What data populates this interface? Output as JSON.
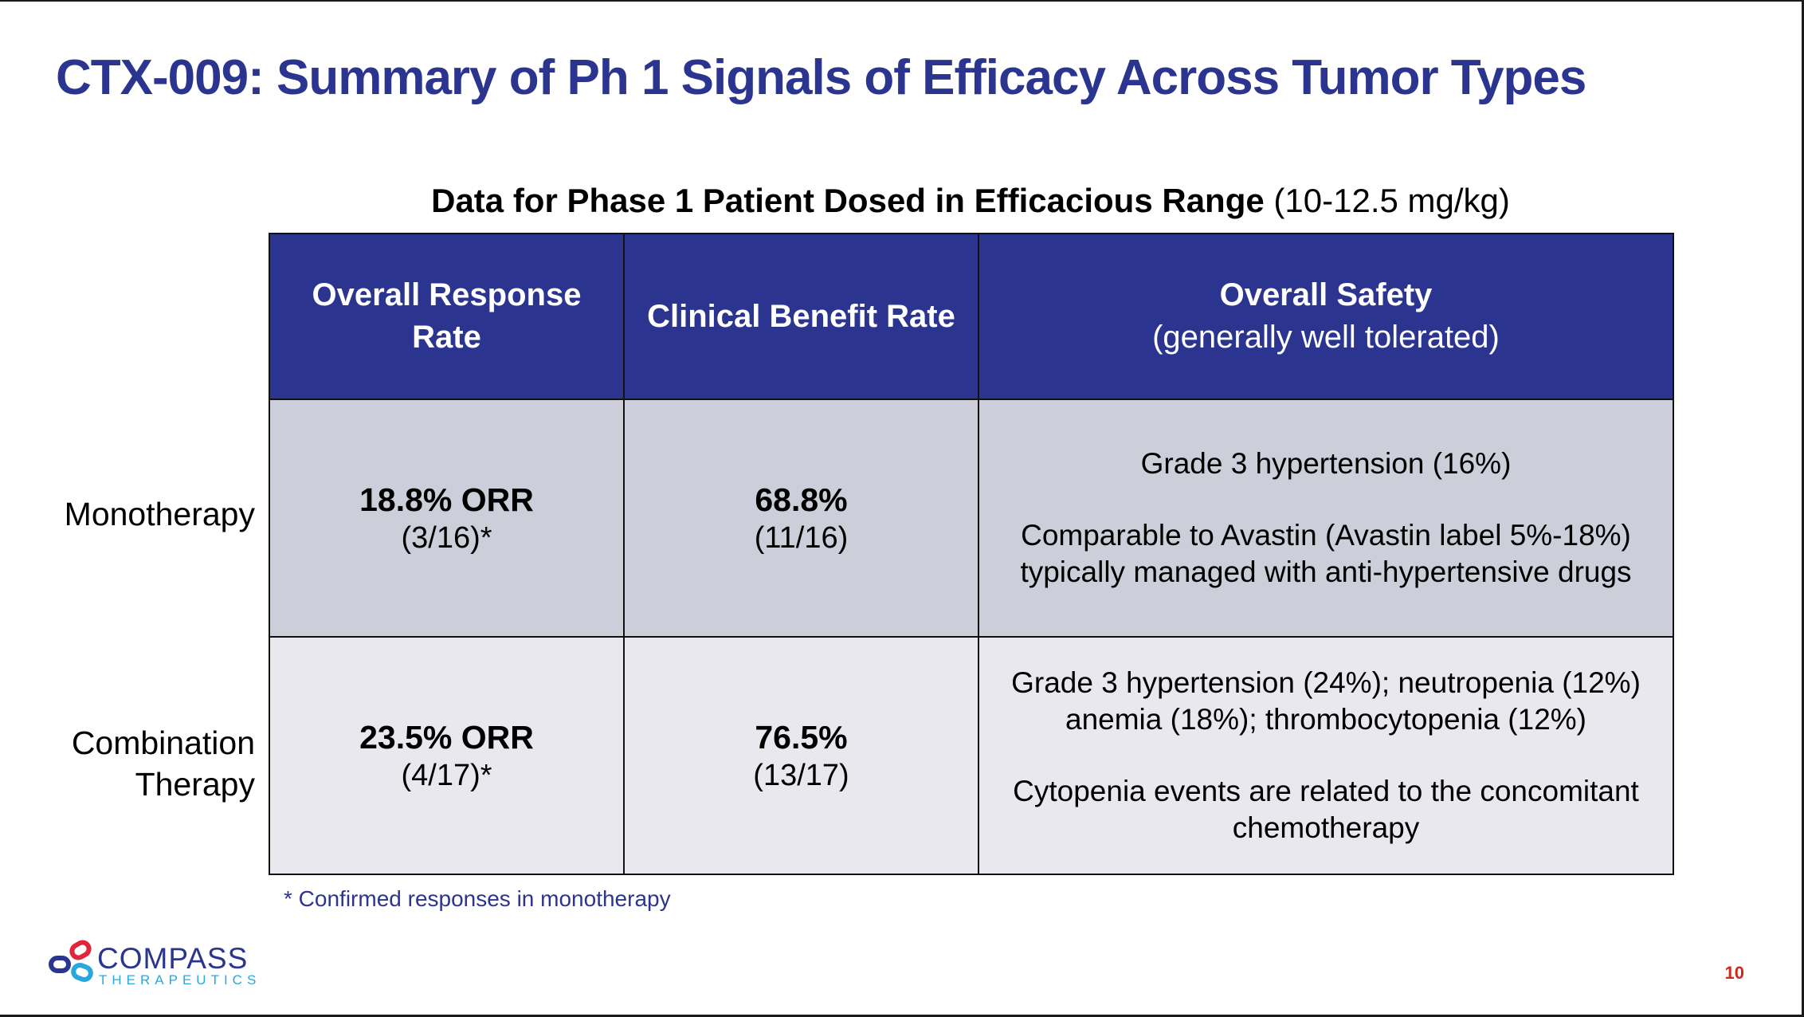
{
  "slide": {
    "title": "CTX-009: Summary of Ph 1 Signals of Efficacy Across Tumor Types",
    "subtitle_bold": "Data for Phase 1 Patient Dosed in Efficacious Range",
    "subtitle_plain": "(10-12.5 mg/kg)",
    "page_number": "10"
  },
  "table": {
    "headers": [
      {
        "bold": "Overall Response Rate",
        "sub": ""
      },
      {
        "bold": "Clinical Benefit Rate",
        "sub": ""
      },
      {
        "bold": "Overall Safety",
        "sub": "(generally well tolerated)"
      }
    ],
    "rows": [
      {
        "label": "Monotherapy",
        "orr": "18.8% ORR",
        "orr_frac": "(3/16)*",
        "cbr": "68.8%",
        "cbr_frac": "(11/16)",
        "safety_1": "Grade 3 hypertension (16%)",
        "safety_2": "Comparable to Avastin (Avastin label 5%-18%) typically managed with anti-hypertensive drugs"
      },
      {
        "label": "Combination Therapy",
        "orr": "23.5% ORR",
        "orr_frac": "(4/17)*",
        "cbr": "76.5%",
        "cbr_frac": "(13/17)",
        "safety_1": "Grade 3 hypertension (24%); neutropenia (12%) anemia (18%); thrombocytopenia (12%)",
        "safety_2": "Cytopenia events are related to the concomitant chemotherapy"
      }
    ]
  },
  "footnote": "* Confirmed responses in monotherapy",
  "logo": {
    "word": "COMPASS",
    "sub": "THERAPEUTICS",
    "icon": "compass-rings-logo-icon",
    "colors": {
      "navy": "#2b3590",
      "red": "#e0263a",
      "cyan": "#29a8e0"
    }
  },
  "colors": {
    "title": "#2b3590",
    "header_bg": "#2b3590",
    "row1_bg": "#ccced9",
    "row2_bg": "#e8e8ee",
    "page_number": "#d2261e"
  }
}
